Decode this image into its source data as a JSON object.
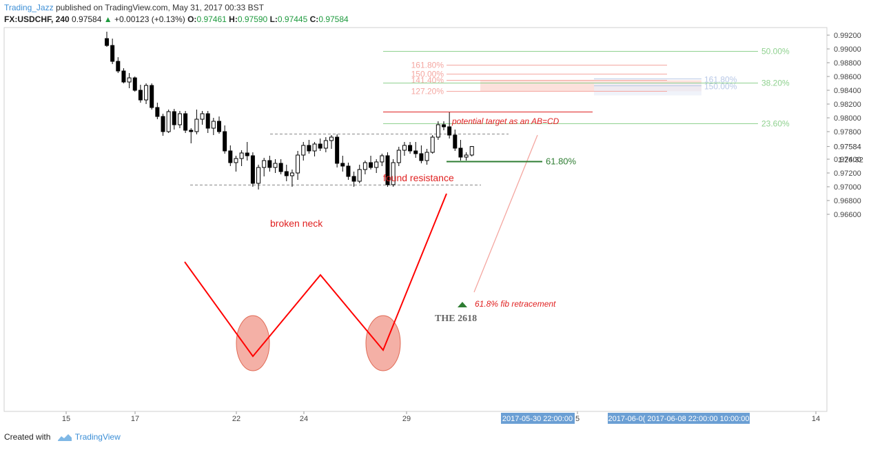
{
  "header": {
    "author": "Trading_Jazz",
    "published": "published on TradingView.com, May 31, 2017 00:33 BST",
    "symbol": "FX:USDCHF, 240",
    "last": "0.97584",
    "change": "+0.00123 (+0.13%)",
    "o_label": "O:",
    "o": "0.97461",
    "h_label": "H:",
    "h": "0.97590",
    "l_label": "L:",
    "l": "0.97445",
    "c_label": "C:",
    "c": "0.97584"
  },
  "footer": {
    "created_with": "Created with",
    "brand": "TradingView"
  },
  "colors": {
    "up_candle": "#ffffff",
    "down_candle": "#000000",
    "pattern": "#ff0000",
    "fib_red": "#f4a6a0",
    "fib_green": "#8fd18f",
    "target_box": "#fbd9d3",
    "retracement": "#2e7d32",
    "time_badge": "#6b9fd4"
  },
  "chart_data": {
    "type": "candlestick",
    "instrument": "FX:USDCHF",
    "interval": "240",
    "ylim": [
      0.9645,
      0.9932
    ],
    "y_ticks": [
      "0.99200",
      "0.99000",
      "0.98800",
      "0.98600",
      "0.98400",
      "0.98200",
      "0.98000",
      "0.97800",
      "0.97584",
      "0.97400",
      "0.97200",
      "0.97000",
      "0.96800",
      "0.96600"
    ],
    "y_ticks_values": [
      0.992,
      0.99,
      0.988,
      0.986,
      0.984,
      0.982,
      0.98,
      0.978,
      0.97584,
      0.974,
      0.972,
      0.97,
      0.968,
      0.966
    ],
    "countdown": "1:26:32",
    "x_ticks": [
      "15",
      "17",
      "22",
      "24",
      "29",
      "5",
      "14"
    ],
    "time_badges": [
      "2017-05-30 22:00:00",
      "2017-06-0( 2017-06-08 22:00:00 10:00:00"
    ],
    "candles": [
      {
        "o": 0.9915,
        "h": 0.9925,
        "l": 0.9903,
        "c": 0.9905
      },
      {
        "o": 0.9905,
        "h": 0.9915,
        "l": 0.9878,
        "c": 0.9882
      },
      {
        "o": 0.9882,
        "h": 0.9888,
        "l": 0.9865,
        "c": 0.9868
      },
      {
        "o": 0.9868,
        "h": 0.9872,
        "l": 0.985,
        "c": 0.9852
      },
      {
        "o": 0.9852,
        "h": 0.9865,
        "l": 0.9843,
        "c": 0.9858
      },
      {
        "o": 0.9858,
        "h": 0.986,
        "l": 0.9838,
        "c": 0.984
      },
      {
        "o": 0.984,
        "h": 0.9848,
        "l": 0.9822,
        "c": 0.9826
      },
      {
        "o": 0.9826,
        "h": 0.985,
        "l": 0.982,
        "c": 0.9847
      },
      {
        "o": 0.9847,
        "h": 0.985,
        "l": 0.9812,
        "c": 0.9815
      },
      {
        "o": 0.9815,
        "h": 0.9822,
        "l": 0.9798,
        "c": 0.9802
      },
      {
        "o": 0.9802,
        "h": 0.9806,
        "l": 0.9774,
        "c": 0.978
      },
      {
        "o": 0.978,
        "h": 0.9812,
        "l": 0.9778,
        "c": 0.9809
      },
      {
        "o": 0.9809,
        "h": 0.9813,
        "l": 0.9783,
        "c": 0.979
      },
      {
        "o": 0.979,
        "h": 0.981,
        "l": 0.9785,
        "c": 0.9806
      },
      {
        "o": 0.9806,
        "h": 0.981,
        "l": 0.9778,
        "c": 0.9782
      },
      {
        "o": 0.9782,
        "h": 0.9785,
        "l": 0.9763,
        "c": 0.978
      },
      {
        "o": 0.978,
        "h": 0.9812,
        "l": 0.9776,
        "c": 0.9798
      },
      {
        "o": 0.9798,
        "h": 0.981,
        "l": 0.979,
        "c": 0.9806
      },
      {
        "o": 0.9806,
        "h": 0.981,
        "l": 0.9778,
        "c": 0.9785
      },
      {
        "o": 0.9785,
        "h": 0.98,
        "l": 0.9775,
        "c": 0.9795
      },
      {
        "o": 0.9795,
        "h": 0.9802,
        "l": 0.9777,
        "c": 0.978
      },
      {
        "o": 0.978,
        "h": 0.9789,
        "l": 0.9748,
        "c": 0.9752
      },
      {
        "o": 0.9752,
        "h": 0.976,
        "l": 0.973,
        "c": 0.9735
      },
      {
        "o": 0.9735,
        "h": 0.9745,
        "l": 0.9722,
        "c": 0.9741
      },
      {
        "o": 0.9741,
        "h": 0.9753,
        "l": 0.973,
        "c": 0.9749
      },
      {
        "o": 0.9749,
        "h": 0.9765,
        "l": 0.9738,
        "c": 0.9745
      },
      {
        "o": 0.9745,
        "h": 0.975,
        "l": 0.97,
        "c": 0.9705
      },
      {
        "o": 0.9705,
        "h": 0.9732,
        "l": 0.9696,
        "c": 0.9728
      },
      {
        "o": 0.9728,
        "h": 0.9742,
        "l": 0.9715,
        "c": 0.9738
      },
      {
        "o": 0.9738,
        "h": 0.9745,
        "l": 0.9722,
        "c": 0.9728
      },
      {
        "o": 0.9728,
        "h": 0.974,
        "l": 0.972,
        "c": 0.9734
      },
      {
        "o": 0.9734,
        "h": 0.974,
        "l": 0.9718,
        "c": 0.9722
      },
      {
        "o": 0.9722,
        "h": 0.9732,
        "l": 0.9708,
        "c": 0.9716
      },
      {
        "o": 0.9716,
        "h": 0.9725,
        "l": 0.97,
        "c": 0.972
      },
      {
        "o": 0.972,
        "h": 0.9752,
        "l": 0.971,
        "c": 0.9746
      },
      {
        "o": 0.9746,
        "h": 0.9765,
        "l": 0.9738,
        "c": 0.976
      },
      {
        "o": 0.976,
        "h": 0.9768,
        "l": 0.9748,
        "c": 0.9752
      },
      {
        "o": 0.9752,
        "h": 0.9765,
        "l": 0.9744,
        "c": 0.9762
      },
      {
        "o": 0.9762,
        "h": 0.977,
        "l": 0.9752,
        "c": 0.9756
      },
      {
        "o": 0.9756,
        "h": 0.9772,
        "l": 0.975,
        "c": 0.9767
      },
      {
        "o": 0.9767,
        "h": 0.9775,
        "l": 0.9755,
        "c": 0.9772
      },
      {
        "o": 0.9772,
        "h": 0.9776,
        "l": 0.9728,
        "c": 0.9734
      },
      {
        "o": 0.9734,
        "h": 0.9745,
        "l": 0.9722,
        "c": 0.973
      },
      {
        "o": 0.973,
        "h": 0.9735,
        "l": 0.971,
        "c": 0.9715
      },
      {
        "o": 0.9715,
        "h": 0.9722,
        "l": 0.97,
        "c": 0.9708
      },
      {
        "o": 0.9708,
        "h": 0.9732,
        "l": 0.9705,
        "c": 0.9725
      },
      {
        "o": 0.9725,
        "h": 0.9738,
        "l": 0.9718,
        "c": 0.9735
      },
      {
        "o": 0.9735,
        "h": 0.9745,
        "l": 0.9725,
        "c": 0.9728
      },
      {
        "o": 0.9728,
        "h": 0.974,
        "l": 0.972,
        "c": 0.9736
      },
      {
        "o": 0.9736,
        "h": 0.9748,
        "l": 0.973,
        "c": 0.9745
      },
      {
        "o": 0.9745,
        "h": 0.975,
        "l": 0.97,
        "c": 0.9703
      },
      {
        "o": 0.9703,
        "h": 0.974,
        "l": 0.97,
        "c": 0.9735
      },
      {
        "o": 0.9735,
        "h": 0.9758,
        "l": 0.973,
        "c": 0.9753
      },
      {
        "o": 0.9753,
        "h": 0.9765,
        "l": 0.9745,
        "c": 0.976
      },
      {
        "o": 0.976,
        "h": 0.9765,
        "l": 0.9748,
        "c": 0.9752
      },
      {
        "o": 0.9752,
        "h": 0.9765,
        "l": 0.9742,
        "c": 0.9748
      },
      {
        "o": 0.9748,
        "h": 0.976,
        "l": 0.9734,
        "c": 0.9738
      },
      {
        "o": 0.9738,
        "h": 0.9755,
        "l": 0.9732,
        "c": 0.975
      },
      {
        "o": 0.975,
        "h": 0.9775,
        "l": 0.9748,
        "c": 0.9772
      },
      {
        "o": 0.9772,
        "h": 0.9795,
        "l": 0.9768,
        "c": 0.979
      },
      {
        "o": 0.979,
        "h": 0.9795,
        "l": 0.9782,
        "c": 0.9787
      },
      {
        "o": 0.9787,
        "h": 0.9808,
        "l": 0.977,
        "c": 0.9775
      },
      {
        "o": 0.9775,
        "h": 0.9783,
        "l": 0.9752,
        "c": 0.9756
      },
      {
        "o": 0.9756,
        "h": 0.9768,
        "l": 0.9738,
        "c": 0.9743
      },
      {
        "o": 0.9743,
        "h": 0.975,
        "l": 0.9738,
        "c": 0.9746
      },
      {
        "o": 0.9746,
        "h": 0.9759,
        "l": 0.9744,
        "c": 0.97584
      }
    ],
    "annotations": {
      "broken_neck": "broken neck",
      "found_resistance": "found resistance",
      "target_note": "potential target as an AB=CD",
      "retracement_note": "61.8% fib retracement",
      "retracement_level": "61.80%",
      "the_2618": "THE 2618",
      "fib_ext": [
        {
          "label": "161.80%",
          "price": 0.98765
        },
        {
          "label": "150.00%",
          "price": 0.98635
        },
        {
          "label": "141.40%",
          "price": 0.98545
        },
        {
          "label": "127.20%",
          "price": 0.98385
        }
      ],
      "fib_ret": [
        {
          "label": "50.00%",
          "price": 0.98965
        },
        {
          "label": "38.20%",
          "price": 0.98505
        },
        {
          "label": "23.60%",
          "price": 0.97915
        }
      ],
      "box_labels": [
        {
          "label": "161.80%",
          "price": 0.98545
        },
        {
          "label": "150.00%",
          "price": 0.98445
        }
      ],
      "resistance_price": 0.98085,
      "neckline_price": 0.97765,
      "support_price": 0.97025,
      "retracement_price": 0.97365
    }
  }
}
